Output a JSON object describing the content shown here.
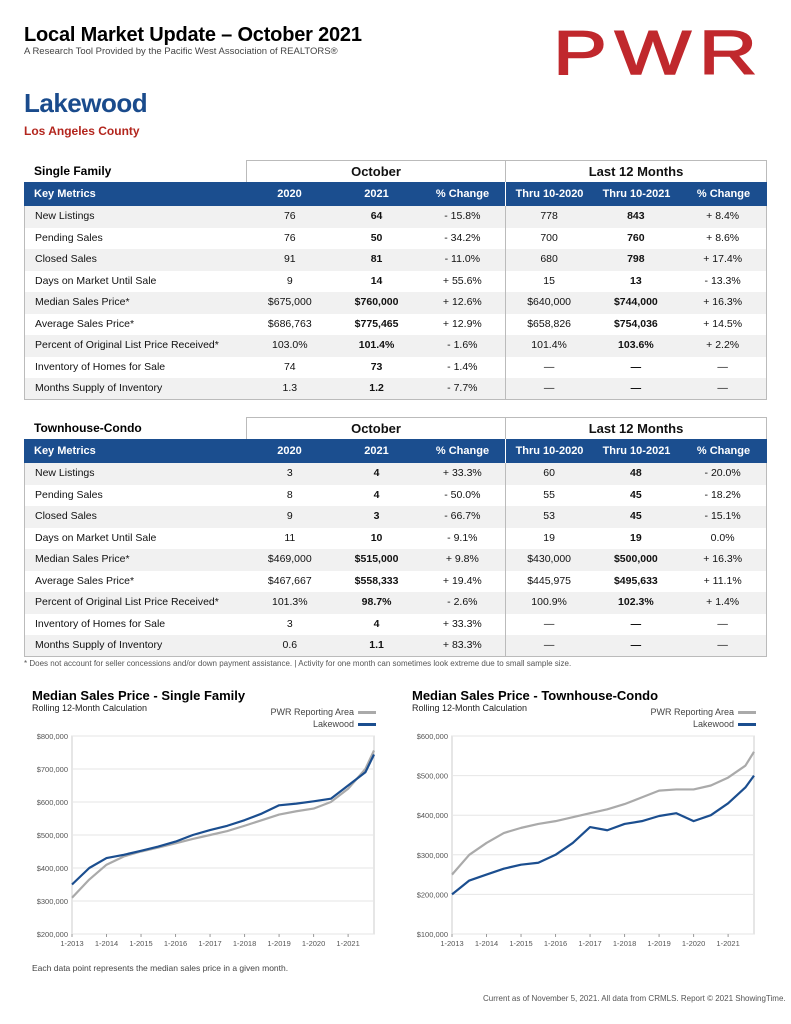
{
  "header": {
    "title": "Local Market Update – October 2021",
    "subtitle": "A Research Tool Provided by the Pacific West Association of REALTORS®",
    "logo_text": "PWR",
    "area": "Lakewood",
    "county": "Los Angeles County"
  },
  "colors": {
    "brand_red": "#c0282d",
    "header_blue": "#1b4e8f",
    "series_lakewood": "#1b4e8f",
    "series_pwr": "#aaaaaa"
  },
  "tables": {
    "single": {
      "group_title": "Single Family",
      "group_oct": "October",
      "group_l12": "Last 12 Months",
      "headers": [
        "Key Metrics",
        "2020",
        "2021",
        "% Change",
        "Thru 10-2020",
        "Thru 10-2021",
        "% Change"
      ],
      "rows": [
        [
          "New Listings",
          "76",
          "64",
          "- 15.8%",
          "778",
          "843",
          "+ 8.4%"
        ],
        [
          "Pending Sales",
          "76",
          "50",
          "- 34.2%",
          "700",
          "760",
          "+ 8.6%"
        ],
        [
          "Closed Sales",
          "91",
          "81",
          "- 11.0%",
          "680",
          "798",
          "+ 17.4%"
        ],
        [
          "Days on Market Until Sale",
          "9",
          "14",
          "+ 55.6%",
          "15",
          "13",
          "- 13.3%"
        ],
        [
          "Median Sales Price*",
          "$675,000",
          "$760,000",
          "+ 12.6%",
          "$640,000",
          "$744,000",
          "+ 16.3%"
        ],
        [
          "Average Sales Price*",
          "$686,763",
          "$775,465",
          "+ 12.9%",
          "$658,826",
          "$754,036",
          "+ 14.5%"
        ],
        [
          "Percent of Original List Price Received*",
          "103.0%",
          "101.4%",
          "- 1.6%",
          "101.4%",
          "103.6%",
          "+ 2.2%"
        ],
        [
          "Inventory of Homes for Sale",
          "74",
          "73",
          "- 1.4%",
          "—",
          "—",
          "—"
        ],
        [
          "Months Supply of Inventory",
          "1.3",
          "1.2",
          "- 7.7%",
          "—",
          "—",
          "—"
        ]
      ]
    },
    "condo": {
      "group_title": "Townhouse-Condo",
      "group_oct": "October",
      "group_l12": "Last 12 Months",
      "headers": [
        "Key Metrics",
        "2020",
        "2021",
        "% Change",
        "Thru 10-2020",
        "Thru 10-2021",
        "% Change"
      ],
      "rows": [
        [
          "New Listings",
          "3",
          "4",
          "+ 33.3%",
          "60",
          "48",
          "- 20.0%"
        ],
        [
          "Pending Sales",
          "8",
          "4",
          "- 50.0%",
          "55",
          "45",
          "- 18.2%"
        ],
        [
          "Closed Sales",
          "9",
          "3",
          "- 66.7%",
          "53",
          "45",
          "- 15.1%"
        ],
        [
          "Days on Market Until Sale",
          "11",
          "10",
          "- 9.1%",
          "19",
          "19",
          "0.0%"
        ],
        [
          "Median Sales Price*",
          "$469,000",
          "$515,000",
          "+ 9.8%",
          "$430,000",
          "$500,000",
          "+ 16.3%"
        ],
        [
          "Average Sales Price*",
          "$467,667",
          "$558,333",
          "+ 19.4%",
          "$445,975",
          "$495,633",
          "+ 11.1%"
        ],
        [
          "Percent of Original List Price Received*",
          "101.3%",
          "98.7%",
          "- 2.6%",
          "100.9%",
          "102.3%",
          "+ 1.4%"
        ],
        [
          "Inventory of Homes for Sale",
          "3",
          "4",
          "+ 33.3%",
          "—",
          "—",
          "—"
        ],
        [
          "Months Supply of Inventory",
          "0.6",
          "1.1",
          "+ 83.3%",
          "—",
          "—",
          "—"
        ]
      ]
    }
  },
  "footnote": "* Does not account for seller concessions and/or down payment assistance. | Activity for one month can sometimes look extreme due to small sample size.",
  "note": "Each data point represents the median sales price in a given month.",
  "current": "Current as of November 5, 2021. All data from CRMLS. Report © 2021 ShowingTime.",
  "chart_data": [
    {
      "type": "line",
      "title": "Median Sales Price - Single Family",
      "subtitle": "Rolling 12-Month Calculation",
      "legend_position": "top-right",
      "grid": true,
      "x_ticks": [
        "1-2013",
        "1-2014",
        "1-2015",
        "1-2016",
        "1-2017",
        "1-2018",
        "1-2019",
        "1-2020",
        "1-2021"
      ],
      "y_ticks": [
        "$200,000",
        "$300,000",
        "$400,000",
        "$500,000",
        "$600,000",
        "$700,000",
        "$800,000"
      ],
      "ylim": [
        200000,
        800000
      ],
      "x_dates": [
        "2013-01",
        "2013-07",
        "2014-01",
        "2014-07",
        "2015-01",
        "2015-07",
        "2016-01",
        "2016-07",
        "2017-01",
        "2017-07",
        "2018-01",
        "2018-07",
        "2019-01",
        "2019-07",
        "2020-01",
        "2020-07",
        "2021-01",
        "2021-07",
        "2021-10"
      ],
      "series": [
        {
          "name": "PWR Reporting Area",
          "color": "#aaaaaa",
          "values": [
            310000,
            365000,
            410000,
            435000,
            450000,
            462000,
            475000,
            488000,
            500000,
            512000,
            528000,
            545000,
            562000,
            572000,
            580000,
            600000,
            640000,
            700000,
            756000
          ]
        },
        {
          "name": "Lakewood",
          "color": "#1b4e8f",
          "values": [
            350000,
            400000,
            430000,
            440000,
            452000,
            465000,
            480000,
            500000,
            515000,
            528000,
            545000,
            565000,
            590000,
            595000,
            602000,
            610000,
            650000,
            690000,
            744000
          ]
        }
      ]
    },
    {
      "type": "line",
      "title": "Median Sales Price - Townhouse-Condo",
      "subtitle": "Rolling 12-Month Calculation",
      "legend_position": "top-right",
      "grid": true,
      "x_ticks": [
        "1-2013",
        "1-2014",
        "1-2015",
        "1-2016",
        "1-2017",
        "1-2018",
        "1-2019",
        "1-2020",
        "1-2021"
      ],
      "y_ticks": [
        "$100,000",
        "$200,000",
        "$300,000",
        "$400,000",
        "$500,000",
        "$600,000"
      ],
      "ylim": [
        100000,
        600000
      ],
      "x_dates": [
        "2013-01",
        "2013-07",
        "2014-01",
        "2014-07",
        "2015-01",
        "2015-07",
        "2016-01",
        "2016-07",
        "2017-01",
        "2017-07",
        "2018-01",
        "2018-07",
        "2019-01",
        "2019-07",
        "2020-01",
        "2020-07",
        "2021-01",
        "2021-07",
        "2021-10"
      ],
      "series": [
        {
          "name": "PWR Reporting Area",
          "color": "#aaaaaa",
          "values": [
            250000,
            300000,
            330000,
            355000,
            368000,
            378000,
            385000,
            395000,
            405000,
            415000,
            428000,
            445000,
            462000,
            465000,
            465000,
            475000,
            495000,
            525000,
            560000
          ]
        },
        {
          "name": "Lakewood",
          "color": "#1b4e8f",
          "values": [
            200000,
            235000,
            250000,
            265000,
            275000,
            280000,
            300000,
            330000,
            370000,
            362000,
            378000,
            385000,
            398000,
            405000,
            385000,
            400000,
            430000,
            470000,
            500000
          ]
        }
      ]
    }
  ]
}
